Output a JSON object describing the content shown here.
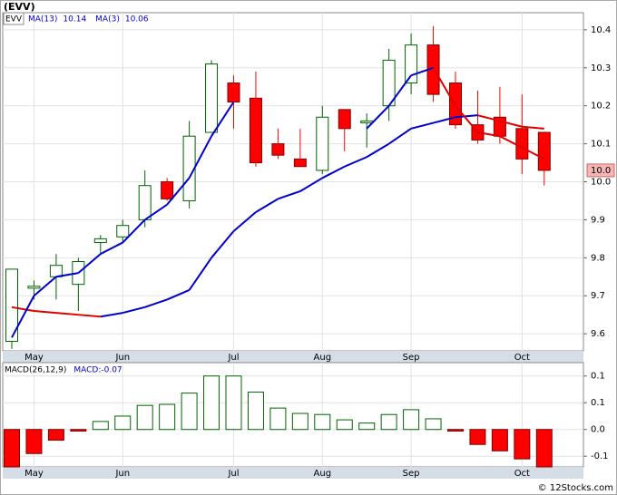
{
  "chart_data": [
    {
      "type": "candlestick",
      "title": "(EVV)",
      "symbol": "EVV",
      "categories": [
        null,
        "May",
        null,
        null,
        null,
        "Jun",
        null,
        null,
        null,
        null,
        "Jul",
        null,
        null,
        null,
        "Aug",
        null,
        null,
        null,
        "Sep",
        null,
        null,
        null,
        null,
        "Oct",
        null
      ],
      "open": [
        9.58,
        9.72,
        9.75,
        9.73,
        9.84,
        9.855,
        9.9,
        10.0,
        9.95,
        10.13,
        10.26,
        10.22,
        10.1,
        10.06,
        10.03,
        10.19,
        10.155,
        10.2,
        10.26,
        10.36,
        10.26,
        10.15,
        10.17,
        10.14,
        10.13
      ],
      "high": [
        9.77,
        9.74,
        9.81,
        9.8,
        9.86,
        9.9,
        10.03,
        10.01,
        10.16,
        10.32,
        10.28,
        10.29,
        10.14,
        10.14,
        10.2,
        10.19,
        10.18,
        10.35,
        10.39,
        10.41,
        10.29,
        10.24,
        10.25,
        10.23,
        10.13
      ],
      "low": [
        9.56,
        9.69,
        9.69,
        9.66,
        9.81,
        9.84,
        9.88,
        9.95,
        9.93,
        10.13,
        10.14,
        10.04,
        10.06,
        10.04,
        10.02,
        10.08,
        10.09,
        10.16,
        10.23,
        10.21,
        10.14,
        10.1,
        10.1,
        10.02,
        9.99
      ],
      "close": [
        9.77,
        9.725,
        9.78,
        9.79,
        9.85,
        9.885,
        9.99,
        9.955,
        10.12,
        10.31,
        10.21,
        10.05,
        10.07,
        10.04,
        10.17,
        10.14,
        10.16,
        10.32,
        10.36,
        10.23,
        10.15,
        10.11,
        10.12,
        10.06,
        10.03
      ],
      "up_color": "#006400",
      "down_color": "#ff0000",
      "series": [
        {
          "name": "MA(13)",
          "last_label": "10.14",
          "values": [
            9.67,
            9.66,
            9.655,
            9.65,
            9.645,
            9.655,
            9.67,
            9.69,
            9.715,
            9.8,
            9.87,
            9.92,
            9.955,
            9.975,
            10.01,
            10.04,
            10.065,
            10.1,
            10.14,
            10.155,
            10.17,
            10.175,
            10.16,
            10.145,
            10.14
          ]
        },
        {
          "name": "MA(3)",
          "last_label": "10.06",
          "values": [
            9.59,
            9.7,
            9.75,
            9.76,
            9.81,
            9.84,
            9.9,
            9.94,
            10.01,
            10.12,
            10.21,
            null,
            null,
            null,
            null,
            null,
            10.14,
            10.2,
            10.28,
            10.3,
            10.2,
            10.13,
            10.12,
            10.09,
            10.06
          ]
        }
      ],
      "line_up_color": "#0000cc",
      "line_down_color": "#dd0000",
      "last_price": {
        "value": 10.03,
        "label": "10.0"
      },
      "ylim": [
        9.555,
        10.445
      ],
      "yticks": [
        9.6,
        9.7,
        9.8,
        9.9,
        {
          "value": 10,
          "label": "10.0"
        },
        10.1,
        10.2,
        10.3,
        10.4
      ],
      "grid": true
    },
    {
      "type": "bar",
      "title": "MACD(26,12,9)",
      "value_label": "MACD:-0.07",
      "values": [
        -0.07,
        -0.045,
        -0.02,
        -0.003,
        0.015,
        0.025,
        0.045,
        0.047,
        0.068,
        0.1,
        0.1,
        0.07,
        0.04,
        0.03,
        0.028,
        0.018,
        0.012,
        0.028,
        0.037,
        0.02,
        -0.003,
        -0.028,
        -0.04,
        -0.055,
        -0.07
      ],
      "up_color": "#006400",
      "down_color": "#ff0000",
      "ylim": [
        -0.07,
        0.125
      ],
      "yticks": [
        0.1,
        {
          "value": 0.05,
          "label": "0.1"
        },
        {
          "value": 0,
          "label": "0.0"
        },
        {
          "value": -0.05,
          "label": "-0.1"
        }
      ],
      "grid": true
    }
  ],
  "footer": "© 12Stocks.com"
}
